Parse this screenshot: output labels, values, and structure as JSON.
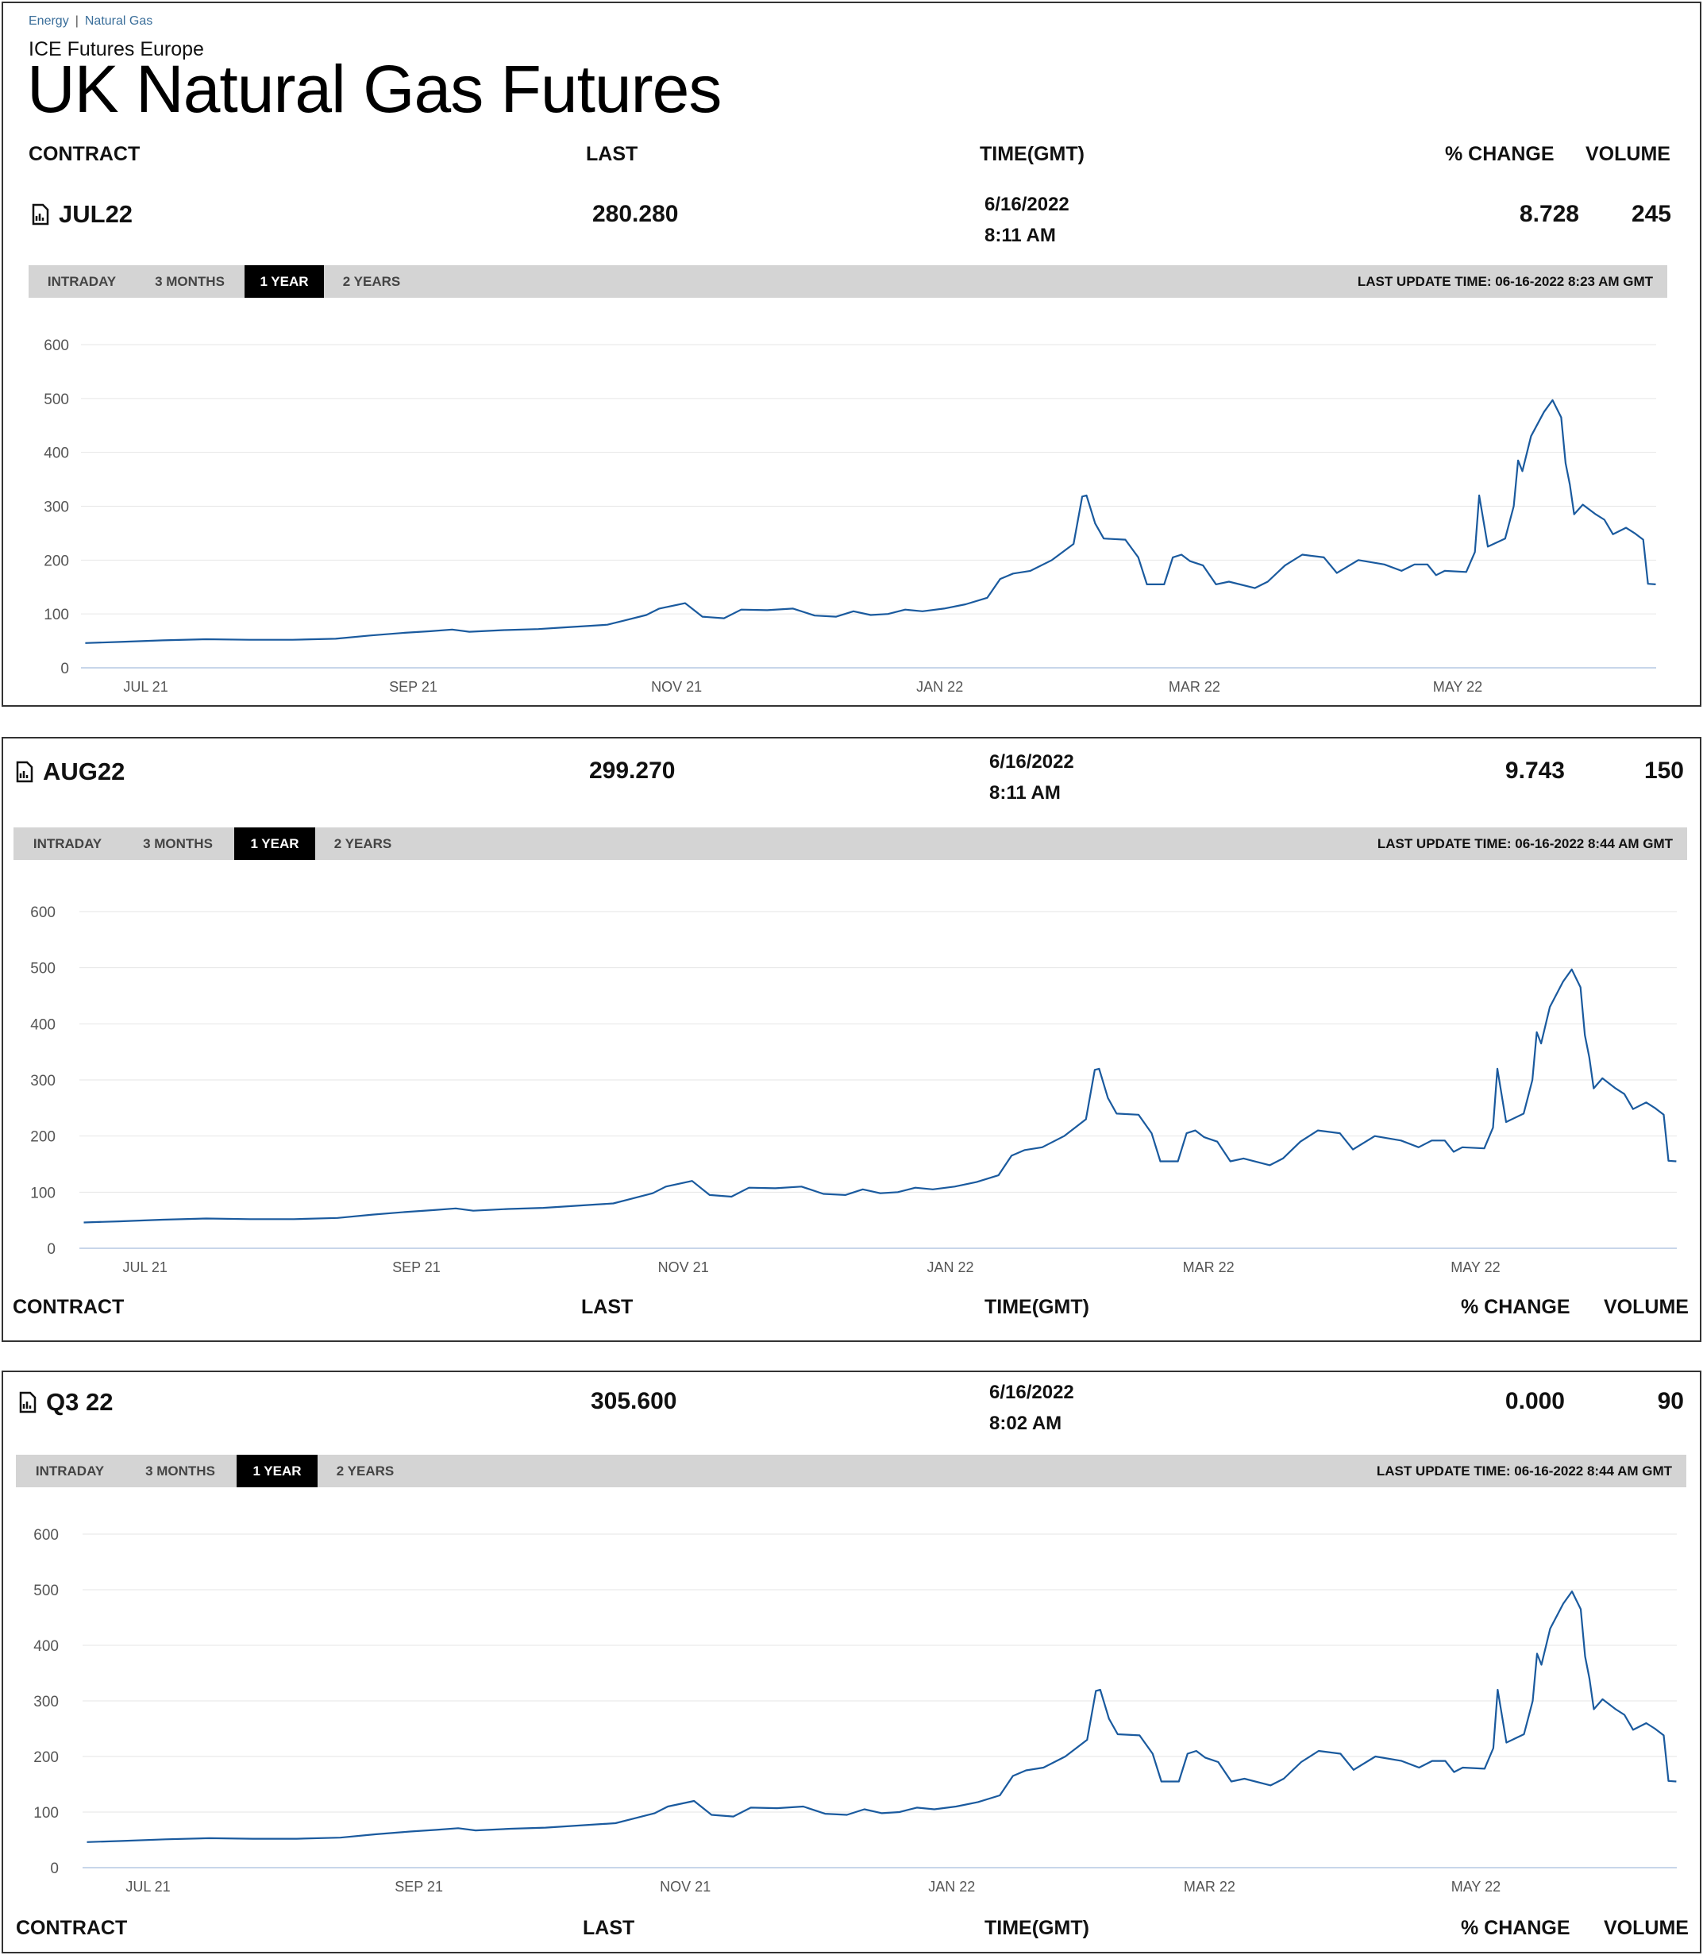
{
  "breadcrumb": [
    "Energy",
    "Natural Gas"
  ],
  "exchange": "ICE Futures Europe",
  "title": "UK Natural Gas Futures",
  "columns": {
    "contract": "CONTRACT",
    "last": "LAST",
    "time": "TIME(GMT)",
    "change": "% CHANGE",
    "volume": "VOLUME"
  },
  "tabs": [
    "INTRADAY",
    "3 MONTHS",
    "1 YEAR",
    "2 YEARS"
  ],
  "active_tab": "1 YEAR",
  "icons": {
    "contract": "chart-report-icon"
  },
  "colors": {
    "line": "#1a5a9e",
    "active_tab_bg": "#000000",
    "tab_bar_bg": "#d4d4d4"
  },
  "contracts": [
    {
      "name": "JUL22",
      "last": "280.280",
      "date": "6/16/2022",
      "time": "8:11 AM",
      "change": "8.728",
      "volume": "245",
      "last_update": "LAST UPDATE TIME: 06-16-2022 8:23 AM GMT"
    },
    {
      "name": "AUG22",
      "last": "299.270",
      "date": "6/16/2022",
      "time": "8:11 AM",
      "change": "9.743",
      "volume": "150",
      "last_update": "LAST UPDATE TIME: 06-16-2022 8:44 AM GMT"
    },
    {
      "name": "Q3 22",
      "last": "305.600",
      "date": "6/16/2022",
      "time": "8:02 AM",
      "change": "0.000",
      "volume": "90",
      "last_update": "LAST UPDATE TIME: 06-16-2022 8:44 AM GMT"
    }
  ],
  "chart_data": [
    {
      "type": "line",
      "y_ticks": [
        0,
        100,
        200,
        300,
        400,
        500,
        600
      ],
      "ylim": [
        0,
        600
      ],
      "x_ticks": [
        "JUL 21",
        "SEP 21",
        "NOV 21",
        "JAN 22",
        "MAR 22",
        "MAY 22"
      ],
      "x_tick_dates": [
        "2021-07-01",
        "2021-09-01",
        "2021-11-01",
        "2022-01-01",
        "2022-03-01",
        "2022-05-01"
      ],
      "xlim": [
        "2021-06-16",
        "2022-06-16"
      ],
      "grid": true,
      "series": [
        {
          "points": [
            [
              "2021-06-17",
              46
            ],
            [
              "2021-06-25",
              48
            ],
            [
              "2021-07-05",
              51
            ],
            [
              "2021-07-15",
              53
            ],
            [
              "2021-07-25",
              52
            ],
            [
              "2021-08-04",
              52
            ],
            [
              "2021-08-14",
              54
            ],
            [
              "2021-08-22",
              60
            ],
            [
              "2021-08-30",
              65
            ],
            [
              "2021-09-05",
              68
            ],
            [
              "2021-09-10",
              71
            ],
            [
              "2021-09-14",
              67
            ],
            [
              "2021-09-22",
              70
            ],
            [
              "2021-09-30",
              72
            ],
            [
              "2021-10-06",
              75
            ],
            [
              "2021-10-12",
              78
            ],
            [
              "2021-10-16",
              80
            ],
            [
              "2021-10-20",
              88
            ],
            [
              "2021-10-25",
              98
            ],
            [
              "2021-10-28",
              110
            ],
            [
              "2021-11-03",
              120
            ],
            [
              "2021-11-07",
              95
            ],
            [
              "2021-11-12",
              92
            ],
            [
              "2021-11-16",
              108
            ],
            [
              "2021-11-22",
              107
            ],
            [
              "2021-11-28",
              110
            ],
            [
              "2021-12-03",
              97
            ],
            [
              "2021-12-08",
              95
            ],
            [
              "2021-12-12",
              105
            ],
            [
              "2021-12-16",
              98
            ],
            [
              "2021-12-20",
              100
            ],
            [
              "2021-12-24",
              108
            ],
            [
              "2021-12-28",
              105
            ],
            [
              "2022-01-02",
              110
            ],
            [
              "2022-01-07",
              118
            ],
            [
              "2022-01-12",
              130
            ],
            [
              "2022-01-15",
              165
            ],
            [
              "2022-01-18",
              175
            ],
            [
              "2022-01-22",
              180
            ],
            [
              "2022-01-27",
              200
            ],
            [
              "2022-02-01",
              230
            ],
            [
              "2022-02-03",
              318
            ],
            [
              "2022-02-04",
              320
            ],
            [
              "2022-02-06",
              268
            ],
            [
              "2022-02-08",
              240
            ],
            [
              "2022-02-13",
              238
            ],
            [
              "2022-02-16",
              205
            ],
            [
              "2022-02-18",
              155
            ],
            [
              "2022-02-22",
              155
            ],
            [
              "2022-02-24",
              205
            ],
            [
              "2022-02-26",
              210
            ],
            [
              "2022-02-28",
              198
            ],
            [
              "2022-03-03",
              190
            ],
            [
              "2022-03-06",
              155
            ],
            [
              "2022-03-09",
              160
            ],
            [
              "2022-03-15",
              148
            ],
            [
              "2022-03-18",
              160
            ],
            [
              "2022-03-22",
              190
            ],
            [
              "2022-03-26",
              210
            ],
            [
              "2022-03-31",
              205
            ],
            [
              "2022-04-03",
              176
            ],
            [
              "2022-04-08",
              200
            ],
            [
              "2022-04-14",
              192
            ],
            [
              "2022-04-18",
              180
            ],
            [
              "2022-04-21",
              192
            ],
            [
              "2022-04-24",
              192
            ],
            [
              "2022-04-26",
              172
            ],
            [
              "2022-04-28",
              180
            ],
            [
              "2022-05-03",
              178
            ],
            [
              "2022-05-05",
              215
            ],
            [
              "2022-05-06",
              320
            ],
            [
              "2022-05-08",
              225
            ],
            [
              "2022-05-12",
              240
            ],
            [
              "2022-05-14",
              300
            ],
            [
              "2022-05-15",
              385
            ],
            [
              "2022-05-16",
              365
            ],
            [
              "2022-05-18",
              430
            ],
            [
              "2022-05-21",
              475
            ],
            [
              "2022-05-23",
              497
            ],
            [
              "2022-05-25",
              465
            ],
            [
              "2022-05-26",
              380
            ],
            [
              "2022-05-27",
              340
            ],
            [
              "2022-05-28",
              285
            ],
            [
              "2022-05-30",
              303
            ],
            [
              "2022-06-02",
              285
            ],
            [
              "2022-06-04",
              275
            ],
            [
              "2022-06-06",
              248
            ],
            [
              "2022-06-09",
              260
            ],
            [
              "2022-06-11",
              250
            ],
            [
              "2022-06-13",
              238
            ]
          ]
        }
      ]
    },
    {
      "type": "line",
      "y_ticks": [
        0,
        100,
        200,
        300,
        400,
        500,
        600
      ],
      "ylim": [
        0,
        600
      ],
      "x_ticks": [
        "JUL 21",
        "SEP 21",
        "NOV 21",
        "JAN 22",
        "MAR 22",
        "MAY 22"
      ],
      "grid": true
    },
    {
      "type": "line",
      "y_ticks": [
        0,
        100,
        200,
        300,
        400,
        500,
        600
      ],
      "ylim": [
        0,
        600
      ],
      "x_ticks": [
        "JUL 21",
        "SEP 21",
        "NOV 21",
        "JAN 22",
        "MAR 22",
        "MAY 22"
      ],
      "grid": true
    }
  ]
}
